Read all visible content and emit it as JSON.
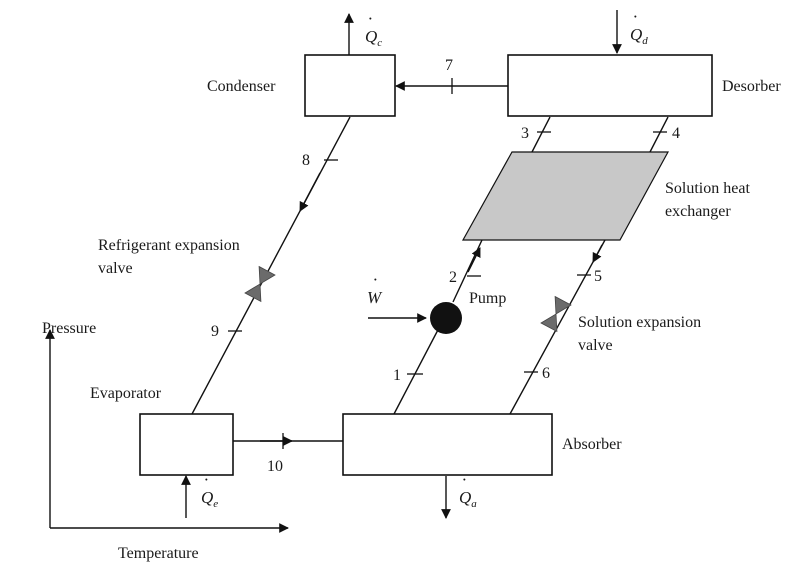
{
  "components": {
    "condenser": "Condenser",
    "desorber": "Desorber",
    "evaporator": "Evaporator",
    "absorber": "Absorber",
    "solution_heat_exchanger_line1": "Solution heat",
    "solution_heat_exchanger_line2": "exchanger",
    "refrigerant_valve_line1": "Refrigerant expansion",
    "refrigerant_valve_line2": "valve",
    "solution_valve_line1": "Solution expansion",
    "solution_valve_line2": "valve",
    "pump": "Pump"
  },
  "heat_flows": {
    "condenser": {
      "symbol": "Q",
      "sub": "c"
    },
    "desorber": {
      "symbol": "Q",
      "sub": "d"
    },
    "evaporator": {
      "symbol": "Q",
      "sub": "e"
    },
    "absorber": {
      "symbol": "Q",
      "sub": "a"
    },
    "pump_work": {
      "symbol": "W",
      "sub": ""
    }
  },
  "state_points": {
    "p1": "1",
    "p2": "2",
    "p3": "3",
    "p4": "4",
    "p5": "5",
    "p6": "6",
    "p7": "7",
    "p8": "8",
    "p9": "9",
    "p10": "10"
  },
  "axes": {
    "y": "Pressure",
    "x": "Temperature"
  }
}
